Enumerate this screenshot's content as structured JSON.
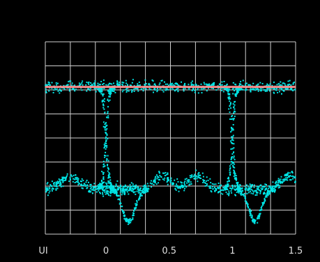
{
  "colors": {
    "background": "#000000",
    "grid": "#d0d0d0",
    "trace": "#00e5e5",
    "reference_line": "#ff8a8a",
    "label": "#e0e0e0"
  },
  "chart_data": {
    "type": "scatter",
    "subtype": "eye-diagram",
    "title": "",
    "xlabel": "UI",
    "ylabel": "",
    "xlim": [
      -0.48,
      1.5
    ],
    "grid": true,
    "grid_divisions": {
      "x": 10,
      "y": 8
    },
    "x_ticks": [
      {
        "value": 0,
        "label": "0"
      },
      {
        "value": 0.5,
        "label": "0.5"
      },
      {
        "value": 1,
        "label": "1"
      },
      {
        "value": 1.5,
        "label": "1.5"
      }
    ],
    "levels": {
      "high": 0.85,
      "low": -0.85
    },
    "crossings_ui": [
      0,
      1
    ],
    "reference_line_level": 0.85,
    "undershoot_after_fall_ui": [
      0.18,
      1.18
    ],
    "overshoot_bumps_ui": [
      -0.28,
      0.45,
      0.72,
      1.45
    ]
  }
}
